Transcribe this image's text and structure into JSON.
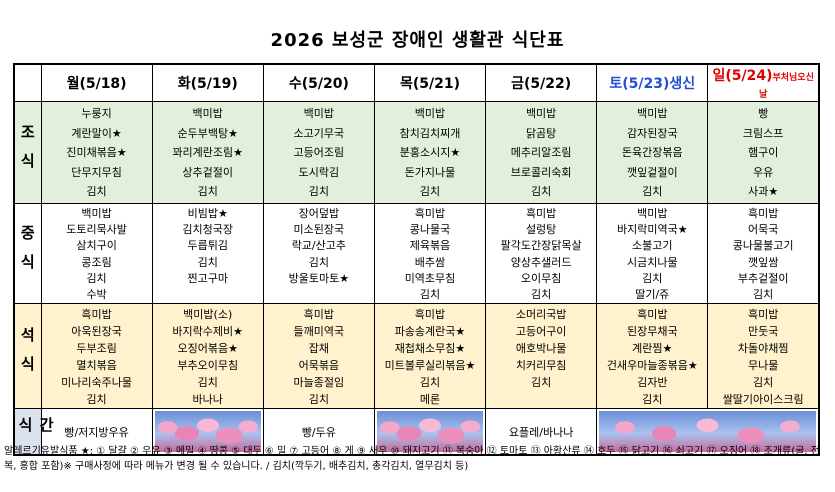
{
  "header": {
    "title": "2026 보성군 장애인 생활관 식단표"
  },
  "table": {
    "columns": [
      "월(5/18)",
      "화(5/19)",
      "수(5/20)",
      "목(5/21)",
      "금(5/22)",
      "토(5/23)생신",
      "일(5/24)"
    ],
    "holiday_note": "부처님오신날",
    "rows": [
      {
        "label": "조식",
        "cells": [
          [
            "누룽지",
            "계란말이★",
            "진미채볶음★",
            "단무지무침",
            "김치"
          ],
          [
            "백미밥",
            "순두부백탕★",
            "꽈리계란조림★",
            "상추겉절이",
            "김치"
          ],
          [
            "백미밥",
            "소고기무국",
            "고등어조림",
            "도시락김",
            "김치"
          ],
          [
            "백미밥",
            "참치김치찌개",
            "분홍소시지★",
            "돈가지나물",
            "김치"
          ],
          [
            "백미밥",
            "닭곰탕",
            "메추리알조림",
            "브로콜리숙회",
            "김치"
          ],
          [
            "백미밥",
            "감자된장국",
            "돈육간장볶음",
            "깻잎겉절이",
            "김치"
          ],
          [
            "빵",
            "크림스프",
            "햄구이",
            "우유",
            "사과★"
          ]
        ]
      },
      {
        "label": "중식",
        "cells": [
          [
            "백미밥",
            "도토리묵사발",
            "삼치구이",
            "콩조림",
            "김치",
            "수박"
          ],
          [
            "비빔밥★",
            "김치청국장",
            "두릅튀김",
            "김치",
            "찐고구마"
          ],
          [
            "장어덮밥",
            "미소된장국",
            "락교/산고추",
            "김치",
            "방울토마토★"
          ],
          [
            "흑미밥",
            "콩나물국",
            "제육볶음",
            "배추쌈",
            "미역초무침",
            "김치"
          ],
          [
            "흑미밥",
            "설렁탕",
            "팔각도간장닭목살",
            "양상추샐러드",
            "오이무침",
            "김치"
          ],
          [
            "백미밥",
            "바지락미역국★",
            "소불고기",
            "시금치나물",
            "김치",
            "딸기/쥬"
          ],
          [
            "흑미밥",
            "어묵국",
            "콩나물불고기",
            "깻잎쌈",
            "부추겉절이",
            "김치"
          ]
        ]
      },
      {
        "label": "석식",
        "cells": [
          [
            "흑미밥",
            "아욱된장국",
            "두부조림",
            "멸치볶음",
            "미나리숙주나물",
            "김치"
          ],
          [
            "백미밥(소)",
            "바지락수제비★",
            "오징어볶음★",
            "부추오이무침",
            "김치",
            "바나나"
          ],
          [
            "흑미밥",
            "들깨미역국",
            "잡채",
            "어묵볶음",
            "마늘종절임",
            "김치"
          ],
          [
            "흑미밥",
            "파송송계란국★",
            "재첩채소무침★",
            "미트볼루실리볶음★",
            "김치",
            "메론"
          ],
          [
            "소머리국밥",
            "고등어구이",
            "애호박나물",
            "치커리무침",
            "김치"
          ],
          [
            "흑미밥",
            "된장무채국",
            "계란찜★",
            "건새우마늘종볶음★",
            "김자반",
            "김치"
          ],
          [
            "흑미밥",
            "만둣국",
            "차돌야채찜",
            "무나물",
            "김치",
            "쌀딸기아이스크림"
          ]
        ]
      }
    ],
    "snack": {
      "label": "간식",
      "items": [
        "빵/저지방우유",
        "빵/두유",
        "요플레/바나나"
      ]
    }
  },
  "footer": {
    "note": "알레르기유발식품 ★: ① 달걀 ② 우유 ③ 메밀 ④ 땅콩 ⑤ 대두 ⑥ 밀 ⑦ 고등어 ⑧ 게 ⑨ 새우 ⑩ 돼지고기 ⑪ 복숭아 ⑫ 토마토 ⑬ 아황산류 ⑭ 호두 ⑮ 닭고기 ⑯ 쇠고기 ⑰ 오징어 ⑱ 조개류(굴, 전복, 홍합 포함)※ 구매사정에 따라 메뉴가 변경 될 수 있습니다. / 김치(깍두기, 배추김치, 총각김치, 열무김치 등)"
  }
}
